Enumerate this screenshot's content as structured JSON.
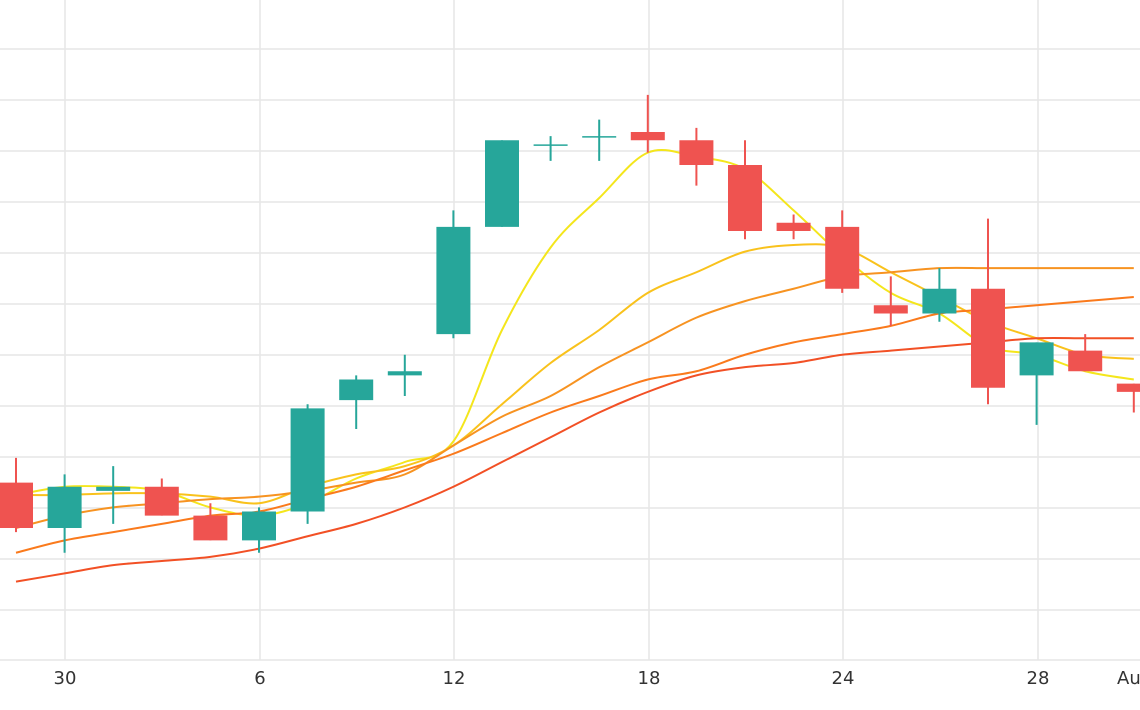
{
  "chart_data": {
    "type": "candlestick",
    "x_tick_labels": [
      "30",
      "6",
      "12",
      "18",
      "24",
      "28",
      "Au"
    ],
    "grid": true,
    "y_axis_labels_visible": false,
    "candles": [
      {
        "open": 41.5,
        "high": 44.5,
        "low": 35.5,
        "close": 36.0
      },
      {
        "open": 36.0,
        "high": 42.5,
        "low": 33.0,
        "close": 41.0
      },
      {
        "open": 40.5,
        "high": 43.5,
        "low": 36.5,
        "close": 41.0
      },
      {
        "open": 41.0,
        "high": 42.0,
        "low": 37.5,
        "close": 37.5
      },
      {
        "open": 37.5,
        "high": 39.0,
        "low": 34.5,
        "close": 34.5
      },
      {
        "open": 34.5,
        "high": 38.5,
        "low": 33.0,
        "close": 38.0
      },
      {
        "open": 38.0,
        "high": 51.0,
        "low": 36.5,
        "close": 50.5
      },
      {
        "open": 51.5,
        "high": 54.5,
        "low": 48.0,
        "close": 54.0
      },
      {
        "open": 54.5,
        "high": 57.0,
        "low": 52.0,
        "close": 55.0
      },
      {
        "open": 59.5,
        "high": 74.5,
        "low": 59.0,
        "close": 72.5
      },
      {
        "open": 72.5,
        "high": 83.0,
        "low": 72.5,
        "close": 83.0
      },
      {
        "open": 82.5,
        "high": 83.5,
        "low": 80.5,
        "close": 82.5
      },
      {
        "open": 83.5,
        "high": 85.5,
        "low": 80.5,
        "close": 83.5
      },
      {
        "open": 84.0,
        "high": 88.5,
        "low": 81.5,
        "close": 83.0
      },
      {
        "open": 83.0,
        "high": 84.5,
        "low": 77.5,
        "close": 80.0
      },
      {
        "open": 80.0,
        "high": 83.0,
        "low": 71.0,
        "close": 72.0
      },
      {
        "open": 73.0,
        "high": 74.0,
        "low": 71.0,
        "close": 72.0
      },
      {
        "open": 72.5,
        "high": 74.5,
        "low": 64.5,
        "close": 65.0
      },
      {
        "open": 63.0,
        "high": 66.5,
        "low": 60.5,
        "close": 62.0
      },
      {
        "open": 62.0,
        "high": 67.5,
        "low": 61.0,
        "close": 65.0
      },
      {
        "open": 65.0,
        "high": 73.5,
        "low": 51.0,
        "close": 53.0
      },
      {
        "open": 54.5,
        "high": 58.5,
        "low": 48.5,
        "close": 58.5
      },
      {
        "open": 57.5,
        "high": 59.5,
        "low": 55.0,
        "close": 55.0
      },
      {
        "open": 53.5,
        "high": 53.5,
        "low": 50.0,
        "close": 52.5
      }
    ],
    "moving_averages": [
      {
        "color": "#f4e61c",
        "values": [
          40.0,
          41.0,
          41.0,
          40.5,
          38.5,
          37.5,
          39.0,
          42.0,
          44.0,
          46.5,
          60.0,
          70.0,
          76.0,
          81.5,
          81.0,
          79.5,
          74.5,
          69.0,
          64.5,
          62.0,
          58.0,
          57.0,
          55.0,
          54.0
        ]
      },
      {
        "color": "#f9c21c",
        "values": [
          40.0,
          40.0,
          40.2,
          40.2,
          39.8,
          39.0,
          41.0,
          42.5,
          43.5,
          46.0,
          51.0,
          56.0,
          60.0,
          64.5,
          67.0,
          69.5,
          70.3,
          70.0,
          67.0,
          64.0,
          61.0,
          59.0,
          57.0,
          56.5
        ]
      },
      {
        "color": "#f79321",
        "values": [
          36.0,
          37.5,
          38.5,
          39.0,
          39.5,
          39.8,
          40.5,
          41.5,
          42.5,
          46.0,
          49.5,
          52.0,
          55.5,
          58.5,
          61.5,
          63.5,
          65.0,
          66.5,
          67.0,
          67.5,
          67.5,
          67.5,
          67.5,
          67.5
        ]
      },
      {
        "color": "#fa7a1c",
        "values": [
          33.0,
          34.5,
          35.5,
          36.5,
          37.5,
          38.0,
          39.5,
          41.0,
          43.0,
          45.0,
          47.5,
          50.0,
          52.0,
          54.0,
          55.0,
          57.0,
          58.5,
          59.5,
          60.5,
          62.0,
          62.5,
          63.0,
          63.5,
          64.0
        ]
      },
      {
        "color": "#f25025",
        "values": [
          29.5,
          30.5,
          31.5,
          32.0,
          32.5,
          33.5,
          35.0,
          36.5,
          38.5,
          41.0,
          44.0,
          47.0,
          50.0,
          52.5,
          54.5,
          55.5,
          56.0,
          57.0,
          57.5,
          58.0,
          58.5,
          59.0,
          59.0,
          59.0
        ]
      }
    ],
    "colors": {
      "up": "#26a69a",
      "down": "#ef5350",
      "grid": "#e6e6e6",
      "axis_text": "#333333"
    }
  }
}
